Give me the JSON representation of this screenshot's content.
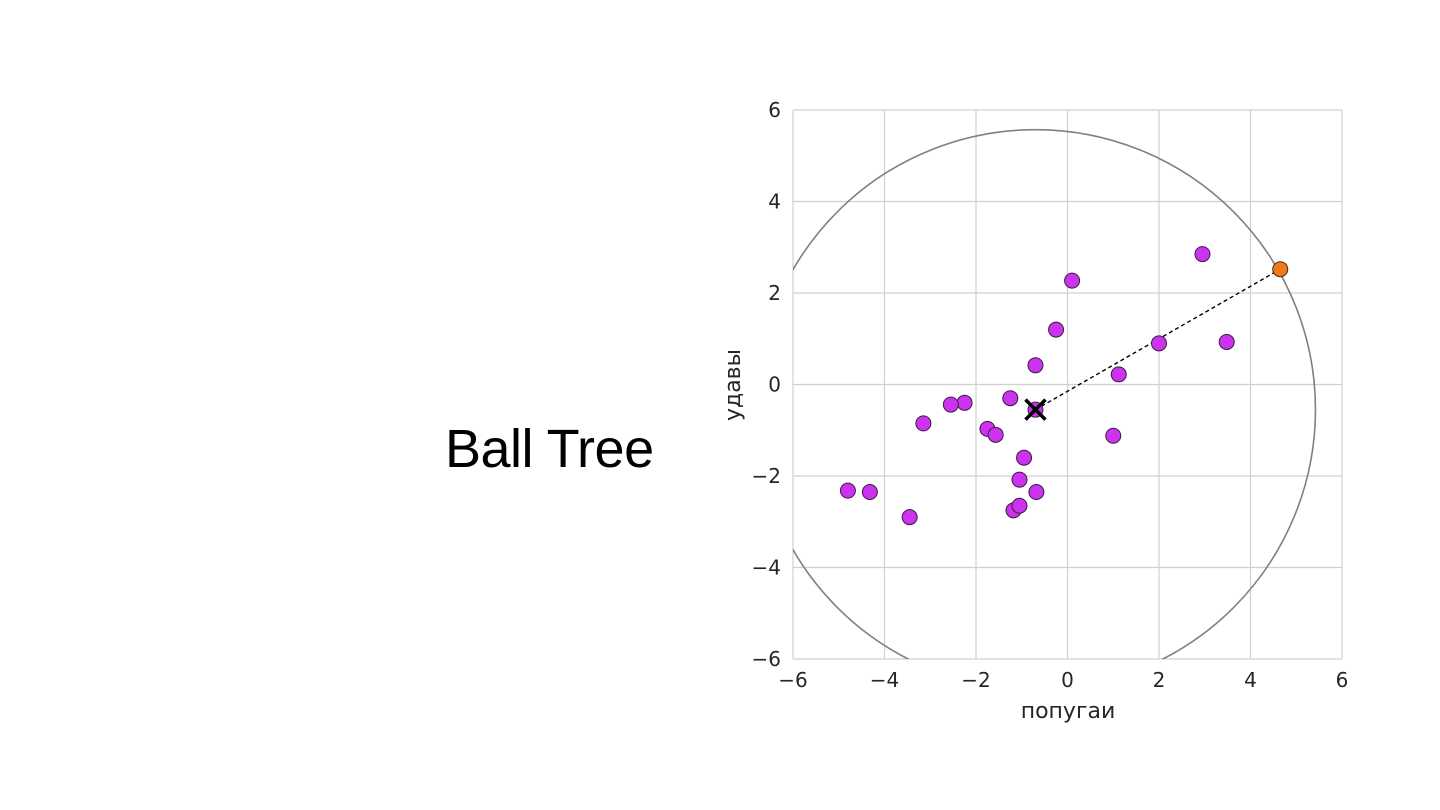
{
  "slide": {
    "title": "Ball Tree"
  },
  "chart_data": {
    "type": "scatter",
    "xlabel": "попугаи",
    "ylabel": "удавы",
    "xlim": [
      -6,
      6
    ],
    "ylim": [
      -6,
      6
    ],
    "xticks": [
      -6,
      -4,
      -2,
      0,
      2,
      4,
      6
    ],
    "yticks": [
      -6,
      -4,
      -2,
      0,
      2,
      4,
      6
    ],
    "xtick_labels": [
      "−6",
      "−4",
      "−2",
      "0",
      "2",
      "4",
      "6"
    ],
    "ytick_labels": [
      "−6",
      "−4",
      "−2",
      "0",
      "2",
      "4",
      "6"
    ],
    "grid": true,
    "points": [
      {
        "x": 2.95,
        "y": 2.85
      },
      {
        "x": 0.1,
        "y": 2.27
      },
      {
        "x": -0.25,
        "y": 1.2
      },
      {
        "x": 2.0,
        "y": 0.9
      },
      {
        "x": 3.48,
        "y": 0.93
      },
      {
        "x": -0.7,
        "y": 0.42
      },
      {
        "x": 1.12,
        "y": 0.22
      },
      {
        "x": -1.25,
        "y": -0.3
      },
      {
        "x": -2.25,
        "y": -0.4
      },
      {
        "x": -2.55,
        "y": -0.44
      },
      {
        "x": -3.15,
        "y": -0.85
      },
      {
        "x": -1.75,
        "y": -0.97
      },
      {
        "x": -1.57,
        "y": -1.1
      },
      {
        "x": 1.0,
        "y": -1.12
      },
      {
        "x": -0.95,
        "y": -1.6
      },
      {
        "x": -1.05,
        "y": -2.08
      },
      {
        "x": -0.68,
        "y": -2.35
      },
      {
        "x": -4.8,
        "y": -2.32
      },
      {
        "x": -4.32,
        "y": -2.35
      },
      {
        "x": -3.45,
        "y": -2.9
      },
      {
        "x": -1.18,
        "y": -2.75
      },
      {
        "x": -1.05,
        "y": -2.65
      },
      {
        "x": -0.7,
        "y": -0.55
      }
    ],
    "point_color": "#cc33ee",
    "far_point": {
      "x": 4.65,
      "y": 2.52
    },
    "far_point_color": "#f07a1a",
    "centroid": {
      "x": -0.7,
      "y": -0.55
    },
    "circle": {
      "cx": -0.7,
      "cy": -0.55,
      "r": 6.12
    },
    "circle_color": "#808080"
  }
}
